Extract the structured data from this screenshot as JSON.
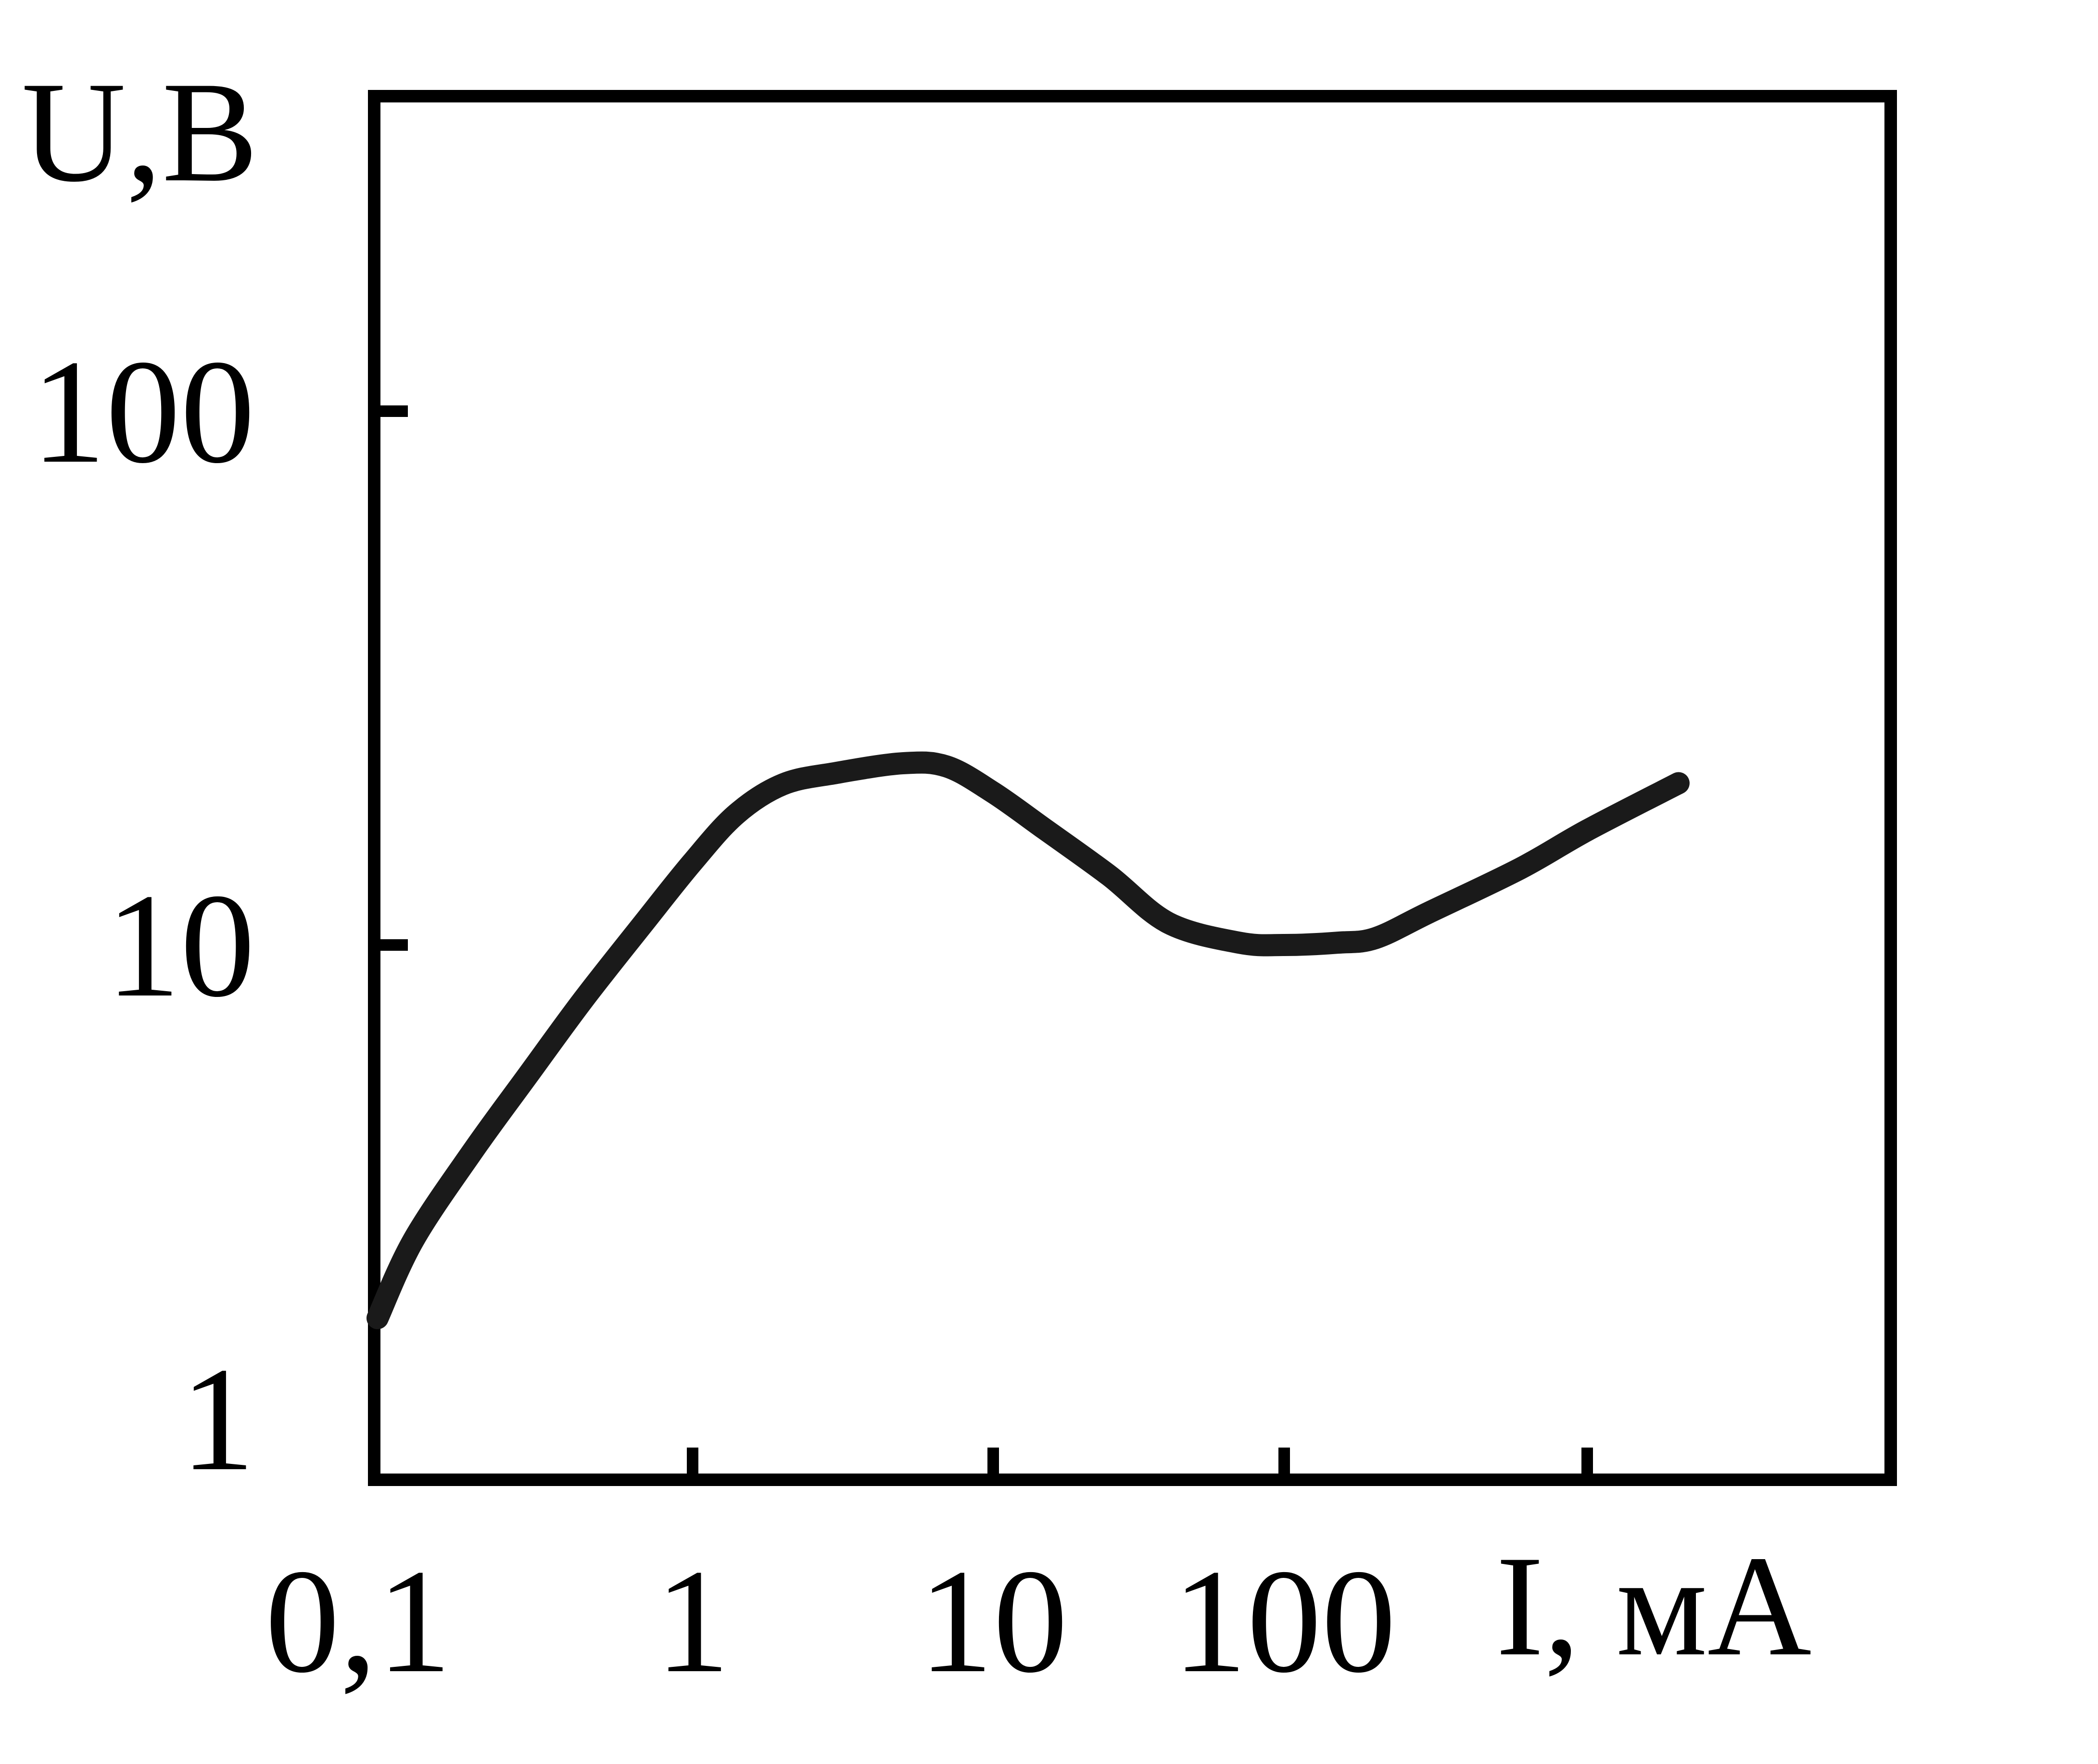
{
  "chart_data": {
    "type": "line",
    "xlabel": "I, мА",
    "ylabel": "U,B",
    "xscale": "log",
    "yscale": "log",
    "xlim": [
      0.1,
      10000
    ],
    "ylim": [
      1,
      250
    ],
    "x_ticks": [
      {
        "value": 0.1,
        "label": "0,1"
      },
      {
        "value": 1,
        "label": "1"
      },
      {
        "value": 10,
        "label": "10"
      },
      {
        "value": 100,
        "label": "100"
      },
      {
        "value": 1000,
        "label": ""
      }
    ],
    "y_ticks": [
      {
        "value": 1,
        "label": "1"
      },
      {
        "value": 10,
        "label": "10"
      },
      {
        "value": 100,
        "label": "100"
      }
    ],
    "grid": false,
    "line_color": "#1a1a1a",
    "series": [
      {
        "x": [
          0.1,
          0.13,
          0.2,
          0.3,
          0.45,
          0.7,
          1.0,
          1.4,
          2.0,
          3.0,
          5.0,
          7.0,
          10.0,
          15.0,
          25.0,
          40.0,
          70.0,
          100.0,
          150.0,
          200.0,
          300.0,
          600.0,
          1000.0,
          2000.0
        ],
        "y": [
          2.0,
          2.8,
          4.1,
          5.7,
          7.9,
          11.0,
          14.3,
          17.6,
          20.0,
          21.0,
          21.9,
          21.6,
          19.3,
          16.5,
          13.5,
          11.0,
          10.1,
          10.0,
          10.1,
          10.3,
          11.5,
          13.9,
          16.4,
          20.1
        ]
      }
    ]
  }
}
